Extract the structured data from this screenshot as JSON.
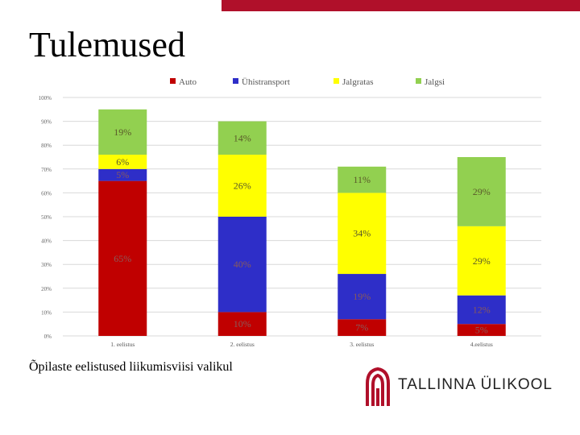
{
  "slide": {
    "title": "Tulemused",
    "caption": "Õpilaste eelistused liikumisviisi valikul",
    "logo_text": "TALLINNA ÜLIKOOL",
    "accent_color": "#b0102a"
  },
  "chart_data": {
    "type": "bar",
    "stacked": true,
    "categories": [
      "1. eelistus",
      "2. eelistus",
      "3. eelistus",
      "4.eelistus"
    ],
    "series": [
      {
        "name": "Auto",
        "color": "#c00000",
        "values": [
          65,
          10,
          7,
          5
        ],
        "labels": [
          "65%",
          "10%",
          "7%",
          "5%"
        ]
      },
      {
        "name": "Ühistransport",
        "color": "#2e2ec8",
        "values": [
          5,
          40,
          19,
          12
        ],
        "labels": [
          "5%",
          "40%",
          "19%",
          "12%"
        ]
      },
      {
        "name": "Jalgratas",
        "color": "#ffff00",
        "values": [
          6,
          26,
          34,
          29
        ],
        "labels": [
          "6%",
          "26%",
          "34%",
          "29%"
        ]
      },
      {
        "name": "Jalgsi",
        "color": "#92d050",
        "values": [
          19,
          14,
          11,
          29
        ],
        "labels": [
          "19%",
          "14%",
          "11%",
          "29%"
        ]
      }
    ],
    "y_ticks": [
      "0%",
      "10%",
      "20%",
      "30%",
      "40%",
      "50%",
      "60%",
      "70%",
      "80%",
      "90%",
      "100%"
    ],
    "ylim": [
      0,
      100
    ],
    "grid": true,
    "legend_position": "top"
  }
}
